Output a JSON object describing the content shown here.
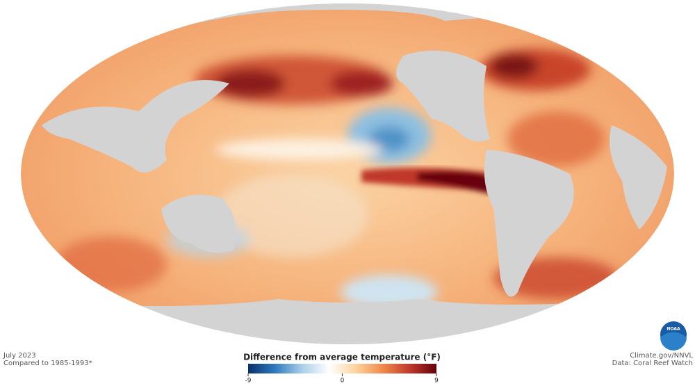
{
  "header": {
    "date": "July 2023",
    "baseline": "Compared to 1985-1993*"
  },
  "credits": {
    "source": "Climate.gov/NNVL",
    "data": "Data: Coral Reef Watch"
  },
  "logo": "NOAA",
  "legend": {
    "title": "Difference from average temperature (°F)",
    "range": [
      -9,
      9
    ],
    "ticks": [
      -9,
      0,
      9
    ],
    "colors": [
      "#08306b",
      "#2f7bbf",
      "#a9cfe8",
      "#ffffff",
      "#fdd49e",
      "#f08a4b",
      "#c0392b",
      "#67000d"
    ]
  }
}
